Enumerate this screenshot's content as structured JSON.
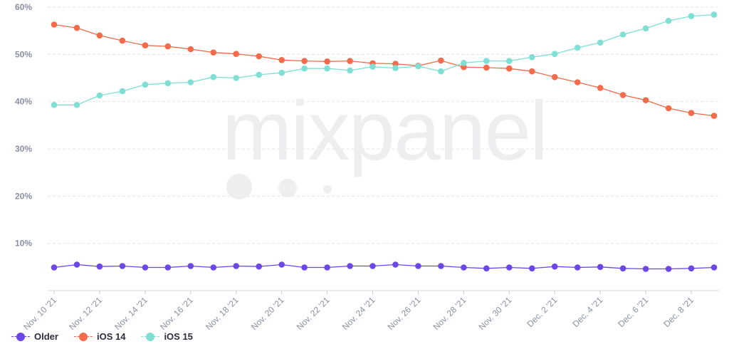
{
  "chart_data": {
    "type": "line",
    "categories": [
      "Nov. 10 '21",
      "Nov. 11 '21",
      "Nov. 12 '21",
      "Nov. 13 '21",
      "Nov. 14 '21",
      "Nov. 15 '21",
      "Nov. 16 '21",
      "Nov. 17 '21",
      "Nov. 18 '21",
      "Nov. 19 '21",
      "Nov. 20 '21",
      "Nov. 21 '21",
      "Nov. 22 '21",
      "Nov. 23 '21",
      "Nov. 24 '21",
      "Nov. 25 '21",
      "Nov. 26 '21",
      "Nov. 27 '21",
      "Nov. 28 '21",
      "Nov. 29 '21",
      "Nov. 30 '21",
      "Dec. 1 '21",
      "Dec. 2 '21",
      "Dec. 3 '21",
      "Dec. 4 '21",
      "Dec. 5 '21",
      "Dec. 6 '21",
      "Dec. 7 '21",
      "Dec. 8 '21",
      "Dec. 9 '21"
    ],
    "xtick_labels": [
      "Nov. 10 '21",
      "Nov. 12 '21",
      "Nov. 14 '21",
      "Nov. 16 '21",
      "Nov. 18 '21",
      "Nov. 20 '21",
      "Nov. 22 '21",
      "Nov. 24 '21",
      "Nov. 26 '21",
      "Nov. 28 '21",
      "Nov. 30 '21",
      "Dec. 2 '21",
      "Dec. 4 '21",
      "Dec. 6 '21",
      "Dec. 8 '21"
    ],
    "ytick_labels": [
      "10%",
      "20%",
      "30%",
      "40%",
      "50%",
      "60%"
    ],
    "ylim": [
      0,
      60
    ],
    "grid": true,
    "legend_position": "bottom-left",
    "series": [
      {
        "name": "Older",
        "color": "#6c47e5",
        "values": [
          4.9,
          5.5,
          5.1,
          5.2,
          4.9,
          4.9,
          5.2,
          4.9,
          5.2,
          5.1,
          5.5,
          4.9,
          4.9,
          5.2,
          5.2,
          5.5,
          5.2,
          5.2,
          4.9,
          4.7,
          4.9,
          4.7,
          5.1,
          4.9,
          5.0,
          4.7,
          4.6,
          4.6,
          4.7,
          4.9
        ]
      },
      {
        "name": "iOS 14",
        "color": "#f26b4b",
        "values": [
          56.3,
          55.6,
          54.0,
          52.9,
          51.9,
          51.7,
          51.1,
          50.4,
          50.1,
          49.6,
          48.8,
          48.6,
          48.5,
          48.6,
          48.1,
          48.0,
          47.6,
          48.7,
          47.3,
          47.2,
          47.0,
          46.4,
          45.2,
          44.1,
          42.9,
          41.4,
          40.3,
          38.6,
          37.6,
          37.0
        ]
      },
      {
        "name": "iOS 15",
        "color": "#7fdfd3",
        "values": [
          39.3,
          39.3,
          41.3,
          42.2,
          43.6,
          43.9,
          44.1,
          45.2,
          45.0,
          45.7,
          46.1,
          47.0,
          47.0,
          46.6,
          47.4,
          47.1,
          47.5,
          46.4,
          48.2,
          48.6,
          48.6,
          49.4,
          50.1,
          51.4,
          52.5,
          54.2,
          55.5,
          57.1,
          58.1,
          58.4
        ]
      }
    ]
  },
  "watermark": {
    "text": "mixpanel"
  }
}
